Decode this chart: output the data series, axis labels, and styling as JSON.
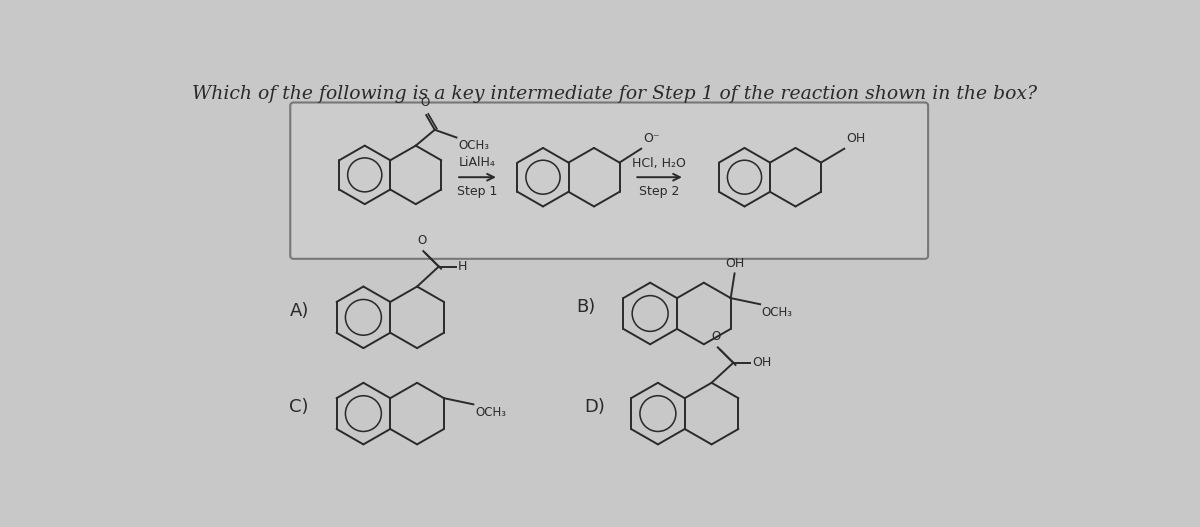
{
  "bg_color": "#c8c8c8",
  "box_bg": "#cecece",
  "box_edge": "#888888",
  "line_color": "#2a2a2a",
  "title": "Which of the following is a key intermediate for Step 1 of the reaction shown in the box?",
  "title_fontsize": 13.5,
  "step1_label": "LiAlH₄",
  "step1_sub": "Step 1",
  "step2_label": "HCl, H₂O",
  "step2_sub": "Step 2",
  "label_A": "A)",
  "label_B": "B)",
  "label_C": "C)",
  "label_D": "D)",
  "och3": "OCH₃",
  "oh": "OH",
  "font_size_labels": 13,
  "font_size_sub": 9.5,
  "lw": 1.4
}
